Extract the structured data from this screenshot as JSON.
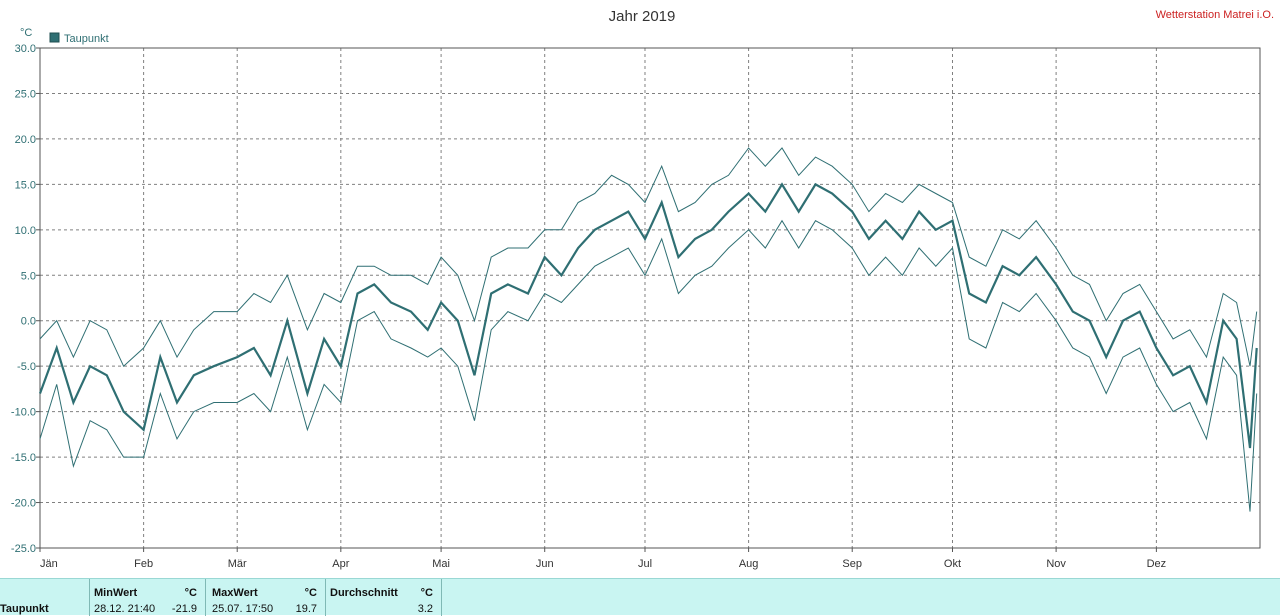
{
  "chart_data": {
    "type": "line",
    "title": "Jahr 2019",
    "station": "Wetterstation Matrei i.O.",
    "ylabel": "°C",
    "ylim": [
      -25,
      30
    ],
    "yticks": [
      "30.0",
      "25.0",
      "20.0",
      "15.0",
      "10.0",
      "5.0",
      "0.0",
      "-5.0",
      "-10.0",
      "-15.0",
      "-20.0",
      "-25.0"
    ],
    "ytick_values": [
      30,
      25,
      20,
      15,
      10,
      5,
      0,
      -5,
      -10,
      -15,
      -20,
      -25
    ],
    "months": [
      "Jän",
      "Feb",
      "Mär",
      "Apr",
      "Mai",
      "Jun",
      "Jul",
      "Aug",
      "Sep",
      "Okt",
      "Nov",
      "Dez"
    ],
    "month_start_days": [
      0,
      31,
      59,
      90,
      120,
      151,
      181,
      212,
      243,
      273,
      304,
      334
    ],
    "days_in_year": 365,
    "grid": true,
    "legend": {
      "position": "top-left",
      "entries": [
        "Taupunkt"
      ]
    },
    "color": "#2f6f73",
    "series": [
      {
        "name": "Taupunkt",
        "x_day": [
          0,
          5,
          10,
          15,
          20,
          25,
          31,
          36,
          41,
          46,
          52,
          59,
          64,
          69,
          74,
          80,
          85,
          90,
          95,
          100,
          105,
          111,
          116,
          120,
          125,
          130,
          135,
          140,
          146,
          151,
          156,
          161,
          166,
          171,
          176,
          181,
          186,
          191,
          196,
          201,
          206,
          212,
          217,
          222,
          227,
          232,
          237,
          243,
          248,
          253,
          258,
          263,
          268,
          273,
          278,
          283,
          288,
          293,
          298,
          304,
          309,
          314,
          319,
          324,
          329,
          334,
          339,
          344,
          349,
          354,
          358,
          362,
          364
        ],
        "mean": [
          -8,
          -3,
          -9,
          -5,
          -6,
          -10,
          -12,
          -4,
          -9,
          -6,
          -5,
          -4,
          -3,
          -6,
          0,
          -8,
          -2,
          -5,
          3,
          4,
          2,
          1,
          -1,
          2,
          0,
          -6,
          3,
          4,
          3,
          7,
          5,
          8,
          10,
          11,
          12,
          9,
          13,
          7,
          9,
          10,
          12,
          14,
          12,
          15,
          12,
          15,
          14,
          12,
          9,
          11,
          9,
          12,
          10,
          11,
          3,
          2,
          6,
          5,
          7,
          4,
          1,
          0,
          -4,
          0,
          1,
          -3,
          -6,
          -5,
          -9,
          0,
          -2,
          -14,
          -3
        ],
        "max": [
          -2,
          0,
          -4,
          0,
          -1,
          -5,
          -3,
          0,
          -4,
          -1,
          1,
          1,
          3,
          2,
          5,
          -1,
          3,
          2,
          6,
          6,
          5,
          5,
          4,
          7,
          5,
          0,
          7,
          8,
          8,
          10,
          10,
          13,
          14,
          16,
          15,
          13,
          17,
          12,
          13,
          15,
          16,
          19,
          17,
          19,
          16,
          18,
          17,
          15,
          12,
          14,
          13,
          15,
          14,
          13,
          7,
          6,
          10,
          9,
          11,
          8,
          5,
          4,
          0,
          3,
          4,
          1,
          -2,
          -1,
          -4,
          3,
          2,
          -5,
          1
        ],
        "min": [
          -13,
          -7,
          -16,
          -11,
          -12,
          -15,
          -15,
          -8,
          -13,
          -10,
          -9,
          -9,
          -8,
          -10,
          -4,
          -12,
          -7,
          -9,
          0,
          1,
          -2,
          -3,
          -4,
          -3,
          -5,
          -11,
          -1,
          1,
          0,
          3,
          2,
          4,
          6,
          7,
          8,
          5,
          9,
          3,
          5,
          6,
          8,
          10,
          8,
          11,
          8,
          11,
          10,
          8,
          5,
          7,
          5,
          8,
          6,
          8,
          -2,
          -3,
          2,
          1,
          3,
          0,
          -3,
          -4,
          -8,
          -4,
          -3,
          -7,
          -10,
          -9,
          -13,
          -4,
          -6,
          -21,
          -8
        ]
      }
    ]
  },
  "stats": {
    "row_label": "Taupunkt",
    "min_header": "MinWert",
    "min_unit": "°C",
    "min_time": "28.12.  21:40",
    "min_value": "-21.9",
    "max_header": "MaxWert",
    "max_unit": "°C",
    "max_time": "25.07.  17:50",
    "max_value": "19.7",
    "avg_header": "Durchschnitt",
    "avg_unit": "°C",
    "avg_value": "3.2"
  }
}
